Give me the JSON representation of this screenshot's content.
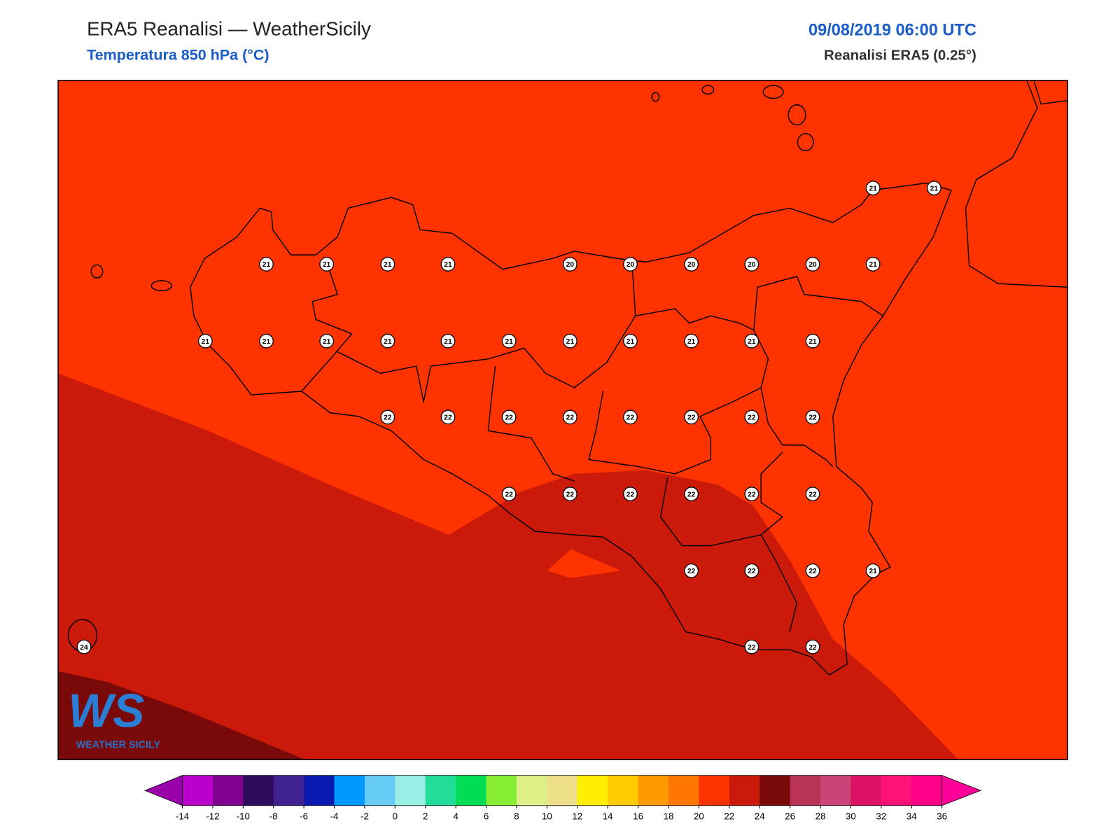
{
  "header": {
    "title": "ERA5 Reanalisi — WeatherSicily",
    "subtitle": "Temperatura 850 hPa (°C)",
    "datetime": "09/08/2019 06:00 UTC",
    "source": "Reanalisi ERA5 (0.25°)"
  },
  "stations": [
    21,
    21,
    21,
    21,
    21,
    21,
    20,
    20,
    20,
    20,
    20,
    21,
    21,
    21,
    21,
    21,
    21,
    21,
    21,
    21,
    21,
    21,
    21,
    22,
    22,
    22,
    22,
    22,
    22,
    22,
    22,
    22,
    22,
    22,
    22,
    22,
    22,
    22,
    22,
    22,
    21,
    24,
    22,
    22
  ],
  "logo": {
    "mark": "WS",
    "text": "WEATHER SICILY"
  },
  "colorbar": {
    "ticks": [
      -14,
      -12,
      -10,
      -8,
      -6,
      -4,
      -2,
      0,
      2,
      4,
      6,
      8,
      10,
      12,
      14,
      16,
      18,
      20,
      22,
      24,
      26,
      28,
      30,
      32,
      34,
      36
    ],
    "under": "#9900aa",
    "over": "#ff0099",
    "colors": [
      "#bb00cc",
      "#800090",
      "#2d0a5a",
      "#3f2290",
      "#0a1ab0",
      "#0099ff",
      "#66ccf5",
      "#99eee6",
      "#22dd99",
      "#00dd55",
      "#88ee33",
      "#ddf088",
      "#eee088",
      "#ffee00",
      "#ffcc00",
      "#ff9900",
      "#ff7700",
      "#ff3300",
      "#cc1a0a",
      "#7a0a0a",
      "#b83355",
      "#cc4477",
      "#dd1166",
      "#ff1177",
      "#ff0088"
    ]
  }
}
